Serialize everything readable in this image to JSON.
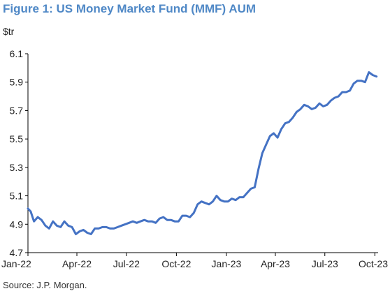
{
  "chart_data": {
    "type": "line",
    "title": "Figure 1: US Money Market Fund (MMF) AUM",
    "ylabel": "$tr",
    "source": "Source: J.P. Morgan.",
    "ylim": [
      4.7,
      6.1
    ],
    "yticks": [
      4.7,
      4.9,
      5.1,
      5.3,
      5.5,
      5.7,
      5.9,
      6.1
    ],
    "ytick_labels": [
      "4.7",
      "4.9",
      "5.1",
      "5.3",
      "5.5",
      "5.7",
      "5.9",
      "6.1"
    ],
    "xlim": [
      "2022-01-01",
      "2023-10-07"
    ],
    "xtick_labels": [
      "Jan-22",
      "Apr-22",
      "Jul-22",
      "Oct-22",
      "Jan-23",
      "Apr-23",
      "Jul-23",
      "Oct-23"
    ],
    "xtick_dates": [
      "2022-01-01",
      "2022-04-01",
      "2022-07-01",
      "2022-10-01",
      "2023-01-01",
      "2023-04-01",
      "2023-07-01",
      "2023-10-01"
    ],
    "grid": false,
    "line_color": "#4472c4",
    "series": [
      {
        "x": [
          "2022-01-01",
          "2022-01-06",
          "2022-01-12",
          "2022-01-19",
          "2022-01-26",
          "2022-02-02",
          "2022-02-09",
          "2022-02-16",
          "2022-02-23",
          "2022-03-02",
          "2022-03-09",
          "2022-03-16",
          "2022-03-23",
          "2022-03-30",
          "2022-04-06",
          "2022-04-13",
          "2022-04-20",
          "2022-04-27",
          "2022-05-04",
          "2022-05-11",
          "2022-05-18",
          "2022-05-25",
          "2022-06-01",
          "2022-06-08",
          "2022-06-15",
          "2022-06-22",
          "2022-06-29",
          "2022-07-06",
          "2022-07-13",
          "2022-07-20",
          "2022-07-27",
          "2022-08-03",
          "2022-08-10",
          "2022-08-17",
          "2022-08-24",
          "2022-08-31",
          "2022-09-07",
          "2022-09-14",
          "2022-09-21",
          "2022-09-28",
          "2022-10-05",
          "2022-10-12",
          "2022-10-19",
          "2022-10-26",
          "2022-11-02",
          "2022-11-09",
          "2022-11-16",
          "2022-11-23",
          "2022-11-30",
          "2022-12-07",
          "2022-12-14",
          "2022-12-21",
          "2022-12-28",
          "2023-01-04",
          "2023-01-11",
          "2023-01-18",
          "2023-01-25",
          "2023-02-01",
          "2023-02-08",
          "2023-02-15",
          "2023-02-22",
          "2023-03-01",
          "2023-03-08",
          "2023-03-15",
          "2023-03-22",
          "2023-03-29",
          "2023-04-05",
          "2023-04-12",
          "2023-04-19",
          "2023-04-26",
          "2023-05-03",
          "2023-05-10",
          "2023-05-17",
          "2023-05-24",
          "2023-05-31",
          "2023-06-07",
          "2023-06-14",
          "2023-06-21",
          "2023-06-28",
          "2023-07-05",
          "2023-07-12",
          "2023-07-19",
          "2023-07-26",
          "2023-08-02",
          "2023-08-09",
          "2023-08-16",
          "2023-08-23",
          "2023-08-30",
          "2023-09-06",
          "2023-09-13",
          "2023-09-20",
          "2023-09-27",
          "2023-10-04"
        ],
        "y": [
          5.01,
          4.99,
          4.92,
          4.95,
          4.93,
          4.89,
          4.87,
          4.92,
          4.89,
          4.88,
          4.92,
          4.89,
          4.88,
          4.83,
          4.85,
          4.86,
          4.84,
          4.83,
          4.87,
          4.87,
          4.88,
          4.88,
          4.87,
          4.87,
          4.88,
          4.89,
          4.9,
          4.91,
          4.92,
          4.91,
          4.92,
          4.93,
          4.92,
          4.92,
          4.91,
          4.94,
          4.95,
          4.93,
          4.93,
          4.92,
          4.92,
          4.96,
          4.96,
          4.95,
          4.98,
          5.04,
          5.06,
          5.05,
          5.04,
          5.06,
          5.1,
          5.07,
          5.06,
          5.06,
          5.08,
          5.07,
          5.09,
          5.09,
          5.12,
          5.15,
          5.16,
          5.29,
          5.4,
          5.46,
          5.52,
          5.54,
          5.51,
          5.57,
          5.61,
          5.62,
          5.65,
          5.69,
          5.71,
          5.74,
          5.73,
          5.71,
          5.72,
          5.75,
          5.73,
          5.74,
          5.77,
          5.79,
          5.8,
          5.83,
          5.83,
          5.84,
          5.89,
          5.91,
          5.91,
          5.9,
          5.97,
          5.95,
          5.94
        ]
      }
    ]
  }
}
